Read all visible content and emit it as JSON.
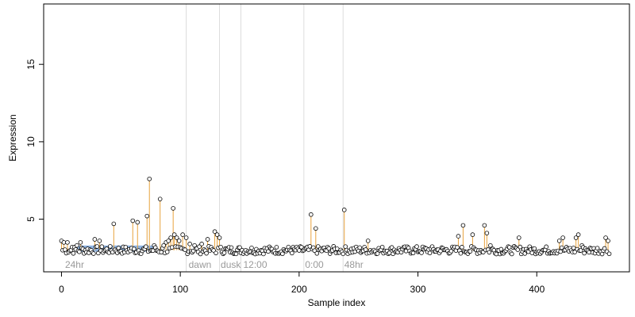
{
  "chart_data": {
    "type": "scatter",
    "title": "",
    "xlabel": "Sample index",
    "ylabel": "Expression",
    "xlim": [
      -15,
      478
    ],
    "ylim": [
      1.6,
      18.9
    ],
    "x_ticks": [
      0,
      100,
      200,
      300,
      400
    ],
    "y_ticks": [
      5,
      10,
      15
    ],
    "grid": false,
    "legend": "none",
    "colors": {
      "point_stroke": "#000000",
      "point_fill": "#ffffff",
      "spike": "#e8a33d",
      "band": "#8fb3e0",
      "vline": "#dcdcdc",
      "region_label": "#9a9a9a"
    },
    "baseline": 3.0,
    "band": {
      "x": [
        12,
        80
      ],
      "y": [
        2.9,
        3.3
      ]
    },
    "vlines": [
      105,
      133,
      151,
      204,
      237
    ],
    "region_labels": [
      {
        "x": 3,
        "text": "24hr"
      },
      {
        "x": 107,
        "text": "dawn"
      },
      {
        "x": 134,
        "text": "dusk"
      },
      {
        "x": 153,
        "text": "12:00"
      },
      {
        "x": 205,
        "text": "0:00"
      },
      {
        "x": 238,
        "text": "48hr"
      }
    ],
    "n_points": 462,
    "highlight_points": [
      [
        0,
        3.6
      ],
      [
        2,
        3.5
      ],
      [
        5,
        3.5
      ],
      [
        9,
        3.2
      ],
      [
        13,
        3.3
      ],
      [
        16,
        3.5
      ],
      [
        28,
        3.7
      ],
      [
        32,
        3.6
      ],
      [
        44,
        4.7
      ],
      [
        60,
        4.9
      ],
      [
        64,
        4.8
      ],
      [
        72,
        5.2
      ],
      [
        74,
        7.6
      ],
      [
        78,
        3.3
      ],
      [
        83,
        6.3
      ],
      [
        86,
        3.3
      ],
      [
        88,
        3.5
      ],
      [
        90,
        3.6
      ],
      [
        92,
        3.8
      ],
      [
        94,
        5.7
      ],
      [
        95,
        4.0
      ],
      [
        97,
        3.8
      ],
      [
        99,
        3.6
      ],
      [
        102,
        4.0
      ],
      [
        105,
        3.8
      ],
      [
        108,
        3.4
      ],
      [
        112,
        3.3
      ],
      [
        118,
        3.4
      ],
      [
        123,
        3.7
      ],
      [
        129,
        4.2
      ],
      [
        131,
        4.0
      ],
      [
        133,
        3.8
      ],
      [
        210,
        5.3
      ],
      [
        214,
        4.4
      ],
      [
        238,
        5.6
      ],
      [
        258,
        3.6
      ],
      [
        334,
        3.9
      ],
      [
        338,
        4.6
      ],
      [
        346,
        4.0
      ],
      [
        356,
        4.6
      ],
      [
        358,
        4.1
      ],
      [
        361,
        3.3
      ],
      [
        385,
        3.8
      ],
      [
        419,
        3.6
      ],
      [
        422,
        3.8
      ],
      [
        433,
        3.8
      ],
      [
        435,
        4.0
      ],
      [
        438,
        3.3
      ],
      [
        441,
        3.1
      ],
      [
        458,
        3.8
      ],
      [
        460,
        3.6
      ],
      [
        462,
        3.4
      ]
    ]
  }
}
